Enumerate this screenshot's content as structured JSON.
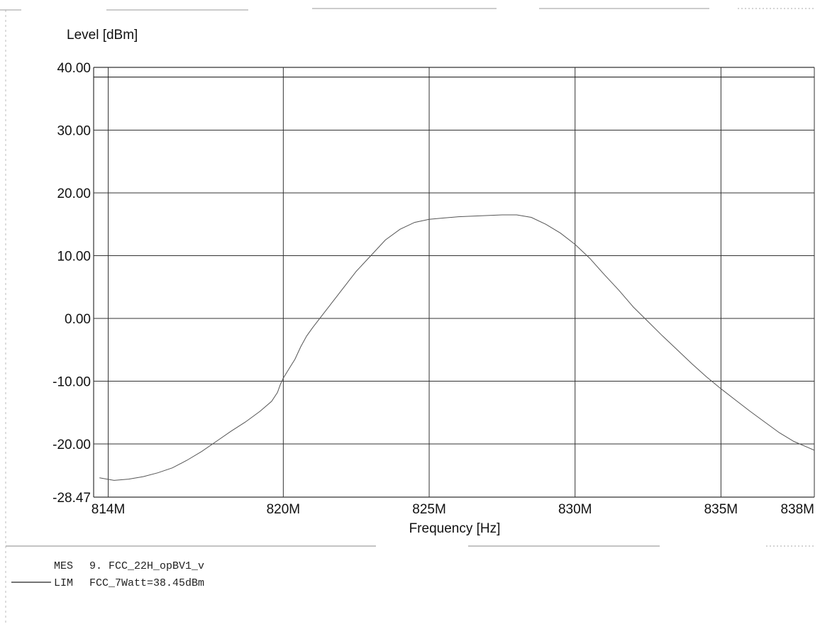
{
  "chart_data": {
    "type": "line",
    "title": "",
    "ylabel": "Level [dBm]",
    "xlabel": "Frequency [Hz]",
    "xlim": [
      813.5,
      838.2
    ],
    "ylim": [
      -28.47,
      40
    ],
    "y_ticks": [
      {
        "value": 40,
        "label": "40.00"
      },
      {
        "value": 30,
        "label": "30.00"
      },
      {
        "value": 20,
        "label": "20.00"
      },
      {
        "value": 10,
        "label": "10.00"
      },
      {
        "value": 0,
        "label": "0.00"
      },
      {
        "value": -10,
        "label": "-10.00"
      },
      {
        "value": -20,
        "label": "-20.00"
      },
      {
        "value": -28.47,
        "label": "-28.47"
      }
    ],
    "x_ticks": [
      {
        "value": 814,
        "label": "814M"
      },
      {
        "value": 820,
        "label": "820M"
      },
      {
        "value": 825,
        "label": "825M"
      },
      {
        "value": 830,
        "label": "830M"
      },
      {
        "value": 835,
        "label": "835M"
      },
      {
        "value": 838,
        "label": "838M"
      }
    ],
    "grid": true,
    "colors": {
      "grid": "#333333",
      "trace": "#555555",
      "text": "#111111"
    },
    "series": [
      {
        "name": "MES",
        "x": [
          813.7,
          814.2,
          814.7,
          815.2,
          815.7,
          816.2,
          816.7,
          817.2,
          817.7,
          818.2,
          818.7,
          819.2,
          819.6,
          819.8,
          819.9,
          820.0,
          820.2,
          820.4,
          820.6,
          820.8,
          821.0,
          821.5,
          822.0,
          822.5,
          823.0,
          823.5,
          824.0,
          824.5,
          825.0,
          825.5,
          826.0,
          826.5,
          827.0,
          827.5,
          828.0,
          828.5,
          829.0,
          829.5,
          830.0,
          830.5,
          831.0,
          831.5,
          832.0,
          832.5,
          833.0,
          833.5,
          834.0,
          834.5,
          835.0,
          835.5,
          836.0,
          836.5,
          837.0,
          837.5,
          838.0,
          838.2
        ],
        "y": [
          -25.4,
          -25.8,
          -25.6,
          -25.2,
          -24.6,
          -23.8,
          -22.6,
          -21.2,
          -19.6,
          -18.0,
          -16.5,
          -14.8,
          -13.2,
          -11.8,
          -10.5,
          -9.5,
          -8.0,
          -6.5,
          -4.5,
          -2.8,
          -1.5,
          1.5,
          4.5,
          7.5,
          10.0,
          12.5,
          14.2,
          15.3,
          15.8,
          16.0,
          16.2,
          16.3,
          16.4,
          16.5,
          16.5,
          16.1,
          15.0,
          13.6,
          11.8,
          9.6,
          7.0,
          4.5,
          1.8,
          -0.5,
          -2.8,
          -5.0,
          -7.2,
          -9.3,
          -11.2,
          -13.0,
          -14.8,
          -16.5,
          -18.2,
          -19.6,
          -20.6,
          -21.0
        ]
      },
      {
        "name": "LIM",
        "x": [
          813.5,
          838.2
        ],
        "y": [
          38.45,
          38.45
        ]
      }
    ]
  },
  "legend": [
    {
      "tag": "MES",
      "text": "9. FCC_22H_opBV1_v"
    },
    {
      "tag": "LIM",
      "text": "FCC_7Watt=38.45dBm"
    }
  ]
}
